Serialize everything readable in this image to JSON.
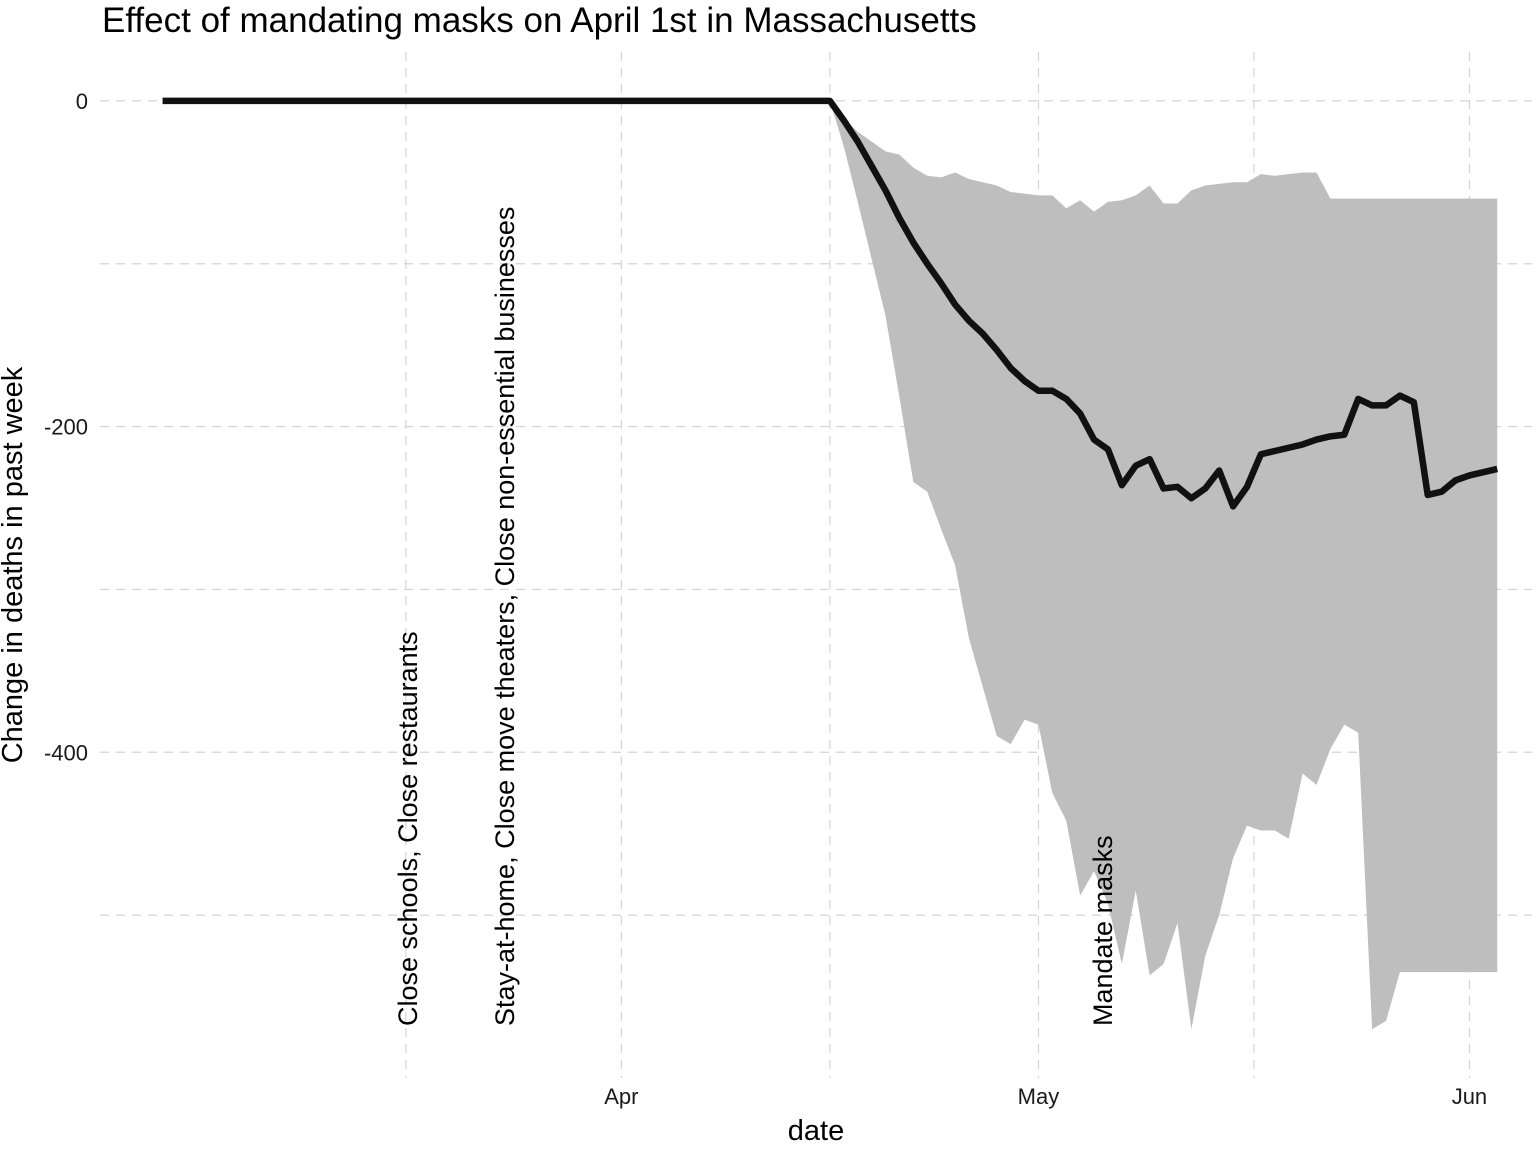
{
  "chart_data": {
    "type": "line",
    "title": "Effect of mandating masks on April 1st in Massachusetts",
    "xlabel": "date",
    "ylabel": "Change in deaths in past week",
    "x_is_days_since_mar1": true,
    "xlim": [
      -6.5,
      96.5
    ],
    "ylim": [
      -600,
      30
    ],
    "x_ticks": [
      {
        "day": 31,
        "label": "Apr"
      },
      {
        "day": 61,
        "label": "May"
      },
      {
        "day": 92,
        "label": "Jun"
      }
    ],
    "x_minor_ticks": [
      15.5,
      46,
      76.5
    ],
    "y_ticks": [
      {
        "value": 0,
        "label": "0"
      },
      {
        "value": -200,
        "label": "-200"
      },
      {
        "value": -400,
        "label": "-400"
      }
    ],
    "y_minor_ticks": [
      -100,
      -300,
      -500
    ],
    "series": [
      {
        "name": "Change in deaths in past week",
        "color": "#111111",
        "x": [
          -2,
          0,
          10,
          20,
          30,
          40,
          45,
          46,
          47,
          48,
          49,
          50,
          51,
          52,
          53,
          54,
          55,
          56,
          57,
          58,
          59,
          60,
          61,
          62,
          63,
          64,
          65,
          66,
          67,
          68,
          69,
          70,
          71,
          72,
          73,
          74,
          75,
          76,
          77,
          78,
          79,
          80,
          81,
          82,
          83,
          84,
          85,
          86,
          87,
          88,
          89,
          90,
          91,
          92,
          93,
          94
        ],
        "values": [
          0,
          0,
          0,
          0,
          0,
          0,
          0,
          0,
          -12,
          -25,
          -40,
          -55,
          -72,
          -87,
          -100,
          -112,
          -125,
          -135,
          -143,
          -153,
          -164,
          -172,
          -178,
          -178,
          -183,
          -192,
          -208,
          -214,
          -236,
          -224,
          -220,
          -238,
          -237,
          -244,
          -238,
          -227,
          -249,
          -237,
          -217,
          -215,
          -213,
          -211,
          -208,
          -206,
          -205,
          -183,
          -187,
          -187,
          -181,
          -185,
          -242,
          -240,
          -233,
          -230,
          -228,
          -226
        ]
      }
    ],
    "band": {
      "name": "uncertainty interval",
      "color": "#bebebe",
      "upper": [
        0,
        0,
        0,
        0,
        0,
        0,
        0,
        0,
        -11,
        -19,
        -25,
        -31,
        -33,
        -41,
        -46,
        -47,
        -44,
        -48,
        -50,
        -52,
        -56,
        -57,
        -58,
        -58,
        -66,
        -61,
        -68,
        -62,
        -61,
        -58,
        -52,
        -63,
        -63,
        -55,
        -52,
        -51,
        -50,
        -50,
        -45,
        -46,
        -45,
        -44,
        -44,
        -60,
        -60,
        -60,
        -60,
        -60,
        -60,
        -60,
        -60,
        -60,
        -60,
        -60,
        -60,
        -60
      ],
      "lower": [
        0,
        0,
        0,
        0,
        0,
        0,
        0,
        0,
        -28,
        -62,
        -97,
        -132,
        -182,
        -234,
        -240,
        -263,
        -285,
        -330,
        -360,
        -390,
        -395,
        -380,
        -383,
        -425,
        -442,
        -488,
        -473,
        -493,
        -530,
        -485,
        -537,
        -530,
        -505,
        -570,
        -525,
        -500,
        -465,
        -445,
        -448,
        -448,
        -453,
        -413,
        -420,
        -398,
        -383,
        -388,
        -570,
        -565,
        -535,
        -535,
        -535,
        -535,
        -535,
        -535,
        -535,
        -535
      ]
    },
    "annotations": [
      {
        "day": 15.5,
        "text": "Close schools, Close restaurants"
      },
      {
        "day": 22.5,
        "text": "Stay-at-home, Close move theaters, Close non-essential businesses"
      },
      {
        "day": 65.5,
        "text": "Mandate masks"
      }
    ]
  }
}
